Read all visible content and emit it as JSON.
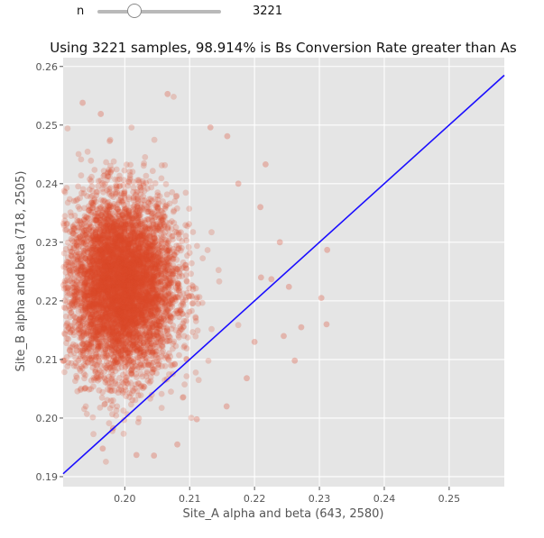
{
  "slider": {
    "label": "n",
    "value": "3221",
    "fraction": 0.3
  },
  "chart_data": {
    "type": "scatter",
    "title": "Using 3221 samples, 98.914% is Bs Conversion Rate greater than As",
    "xlabel": "Site_A alpha and beta (643, 2580)",
    "ylabel": "Site_B alpha and beta (718, 2505)",
    "xlim": [
      0.1905,
      0.2585
    ],
    "ylim": [
      0.1883,
      0.2615
    ],
    "xticks": [
      0.2,
      0.21,
      0.22,
      0.23,
      0.24,
      0.25
    ],
    "xtick_labels": [
      "0.20",
      "0.21",
      "0.22",
      "0.23",
      "0.24",
      "0.25"
    ],
    "yticks": [
      0.19,
      0.2,
      0.21,
      0.22,
      0.23,
      0.24,
      0.25,
      0.26
    ],
    "ytick_labels": [
      "0.19",
      "0.20",
      "0.21",
      "0.22",
      "0.23",
      "0.24",
      "0.25",
      "0.26"
    ],
    "grid": true,
    "point_color": "#d9472b",
    "line_color": "#1a0dff",
    "background_color": "#e5e5e5",
    "cloud_center": {
      "x": 0.1995,
      "y": 0.2227
    },
    "cloud_spread": {
      "x": 0.0042,
      "y": 0.0075
    },
    "reference_line": {
      "x": [
        0.1905,
        0.2585
      ],
      "y": [
        0.1905,
        0.2585
      ]
    },
    "outlier_points": [
      {
        "x": 0.2303,
        "y": 0.2205
      },
      {
        "x": 0.2311,
        "y": 0.216
      },
      {
        "x": 0.2312,
        "y": 0.2287
      },
      {
        "x": 0.2272,
        "y": 0.2155
      },
      {
        "x": 0.2253,
        "y": 0.2224
      },
      {
        "x": 0.2262,
        "y": 0.2098
      },
      {
        "x": 0.221,
        "y": 0.224
      },
      {
        "x": 0.2226,
        "y": 0.2237
      },
      {
        "x": 0.1935,
        "y": 0.2538
      },
      {
        "x": 0.2066,
        "y": 0.2553
      },
      {
        "x": 0.1963,
        "y": 0.2519
      },
      {
        "x": 0.2132,
        "y": 0.2496
      },
      {
        "x": 0.2158,
        "y": 0.2481
      },
      {
        "x": 0.2217,
        "y": 0.2433
      },
      {
        "x": 0.2018,
        "y": 0.1937
      },
      {
        "x": 0.2045,
        "y": 0.1936
      },
      {
        "x": 0.2081,
        "y": 0.1955
      },
      {
        "x": 0.1966,
        "y": 0.1948
      },
      {
        "x": 0.2111,
        "y": 0.1998
      },
      {
        "x": 0.2157,
        "y": 0.202
      },
      {
        "x": 0.2188,
        "y": 0.2068
      },
      {
        "x": 0.1982,
        "y": 0.1983
      },
      {
        "x": 0.22,
        "y": 0.213
      },
      {
        "x": 0.2245,
        "y": 0.214
      },
      {
        "x": 0.2239,
        "y": 0.23
      },
      {
        "x": 0.2209,
        "y": 0.236
      },
      {
        "x": 0.2175,
        "y": 0.24
      }
    ]
  }
}
